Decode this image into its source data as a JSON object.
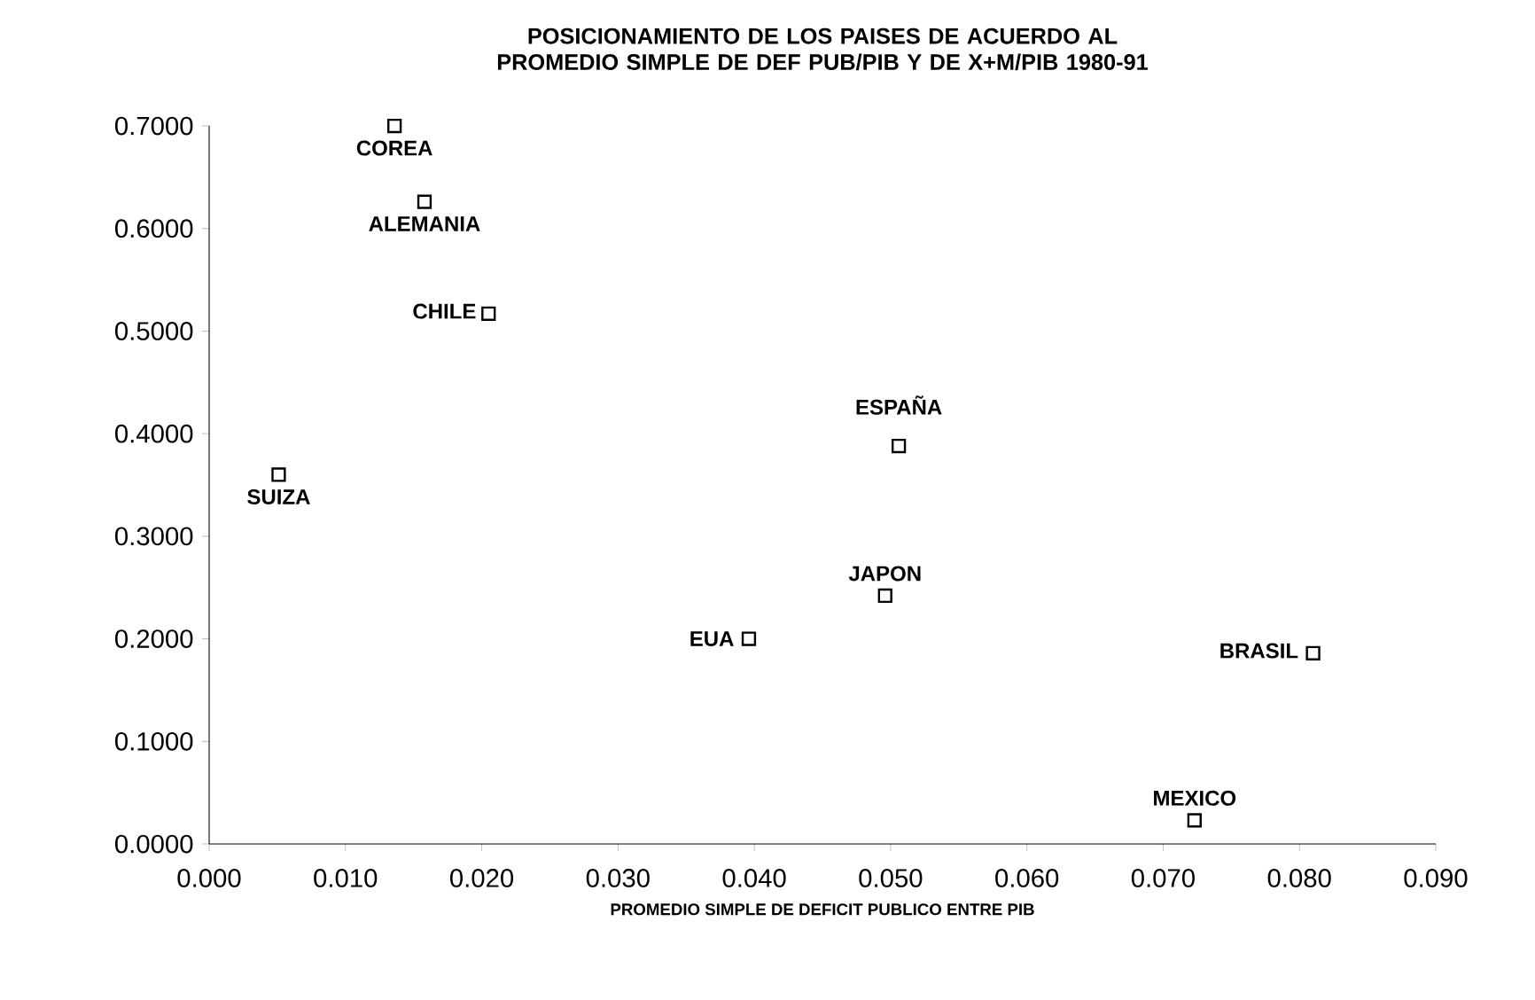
{
  "chart_data": {
    "type": "scatter",
    "title": "POSICIONAMIENTO DE LOS PAISES DE ACUERDO AL PROMEDIO SIMPLE DE DEF PUB/PIB Y DE X+M/PIB 1980-91",
    "xlabel": "PROMEDIO SIMPLE DE DEFICIT PUBLICO ENTRE PIB",
    "series": [
      {
        "name": "COREA",
        "color": "#000000",
        "x": [
          0.0136
        ],
        "values": [
          0.7
        ]
      },
      {
        "name": "ALEMANIA",
        "color": "#000000",
        "x": [
          0.0158
        ],
        "values": [
          0.626
        ]
      },
      {
        "name": "CHILE",
        "color": "#000000",
        "x": [
          0.0205
        ],
        "values": [
          0.517
        ]
      },
      {
        "name": "SUIZA",
        "color": "#000000",
        "x": [
          0.0051
        ],
        "values": [
          0.36
        ]
      },
      {
        "name": "ESPAÑA",
        "color": "#000000",
        "x": [
          0.0506
        ],
        "values": [
          0.388
        ]
      },
      {
        "name": "JAPON",
        "color": "#000000",
        "x": [
          0.0496
        ],
        "values": [
          0.242
        ]
      },
      {
        "name": "EUA",
        "color": "#000000",
        "x": [
          0.0396
        ],
        "values": [
          0.2
        ]
      },
      {
        "name": "BRASIL",
        "color": "#000000",
        "x": [
          0.081
        ],
        "values": [
          0.186
        ]
      },
      {
        "name": "MEXICO",
        "color": "#000000",
        "x": [
          0.0723
        ],
        "values": [
          0.023
        ]
      }
    ],
    "xlim": [
      0,
      0.09
    ],
    "ylim": [
      0,
      0.7
    ],
    "xticks": [
      {
        "value": 0,
        "label": "0.000"
      },
      {
        "value": 0.01,
        "label": "0.010"
      },
      {
        "value": 0.02,
        "label": "0.020"
      },
      {
        "value": 0.03,
        "label": "0.030"
      },
      {
        "value": 0.04,
        "label": "0.040"
      },
      {
        "value": 0.05,
        "label": "0.050"
      },
      {
        "value": 0.06,
        "label": "0.060"
      },
      {
        "value": 0.07,
        "label": "0.070"
      },
      {
        "value": 0.08,
        "label": "0.080"
      },
      {
        "value": 0.09,
        "label": "0.090"
      }
    ],
    "yticks": [
      {
        "value": 0,
        "label": "0.0000"
      },
      {
        "value": 0.1,
        "label": "0.1000"
      },
      {
        "value": 0.2,
        "label": "0.2000"
      },
      {
        "value": 0.3,
        "label": "0.3000"
      },
      {
        "value": 0.4,
        "label": "0.4000"
      },
      {
        "value": 0.5,
        "label": "0.5000"
      },
      {
        "value": 0.6,
        "label": "0.6000"
      },
      {
        "value": 0.7,
        "label": "0.7000"
      }
    ],
    "marker": "square",
    "grid": false
  }
}
